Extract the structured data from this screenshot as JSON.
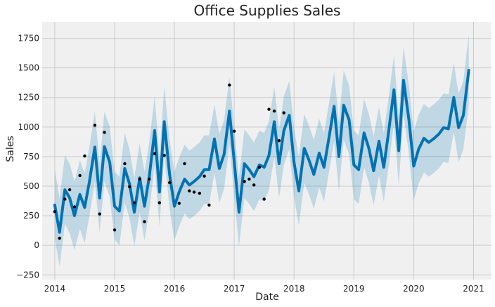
{
  "chart_data": {
    "type": "line",
    "title": "Office Supplies Sales",
    "xlabel": "Date",
    "ylabel": "Sales",
    "xlim": [
      2013.79,
      2021.3
    ],
    "ylim": [
      -290,
      1890
    ],
    "x_ticks": [
      2014,
      2015,
      2016,
      2017,
      2018,
      2019,
      2020,
      2021
    ],
    "x_tick_labels": [
      "2014",
      "2015",
      "2016",
      "2017",
      "2018",
      "2019",
      "2020",
      "2021"
    ],
    "y_ticks": [
      -250,
      0,
      250,
      500,
      750,
      1000,
      1250,
      1500,
      1750
    ],
    "y_tick_labels": [
      "−250",
      "0",
      "250",
      "500",
      "750",
      "1000",
      "1250",
      "1500",
      "1750"
    ],
    "grid": true,
    "colors": {
      "plot_background": "#f0f0f0",
      "grid": "#cbcbcb",
      "forecast_line": "#0072b2",
      "uncertainty_band": "#0072b2",
      "observed_points": "#000000"
    },
    "series": [
      {
        "name": "observed",
        "kind": "scatter",
        "x": [
          2014.0,
          2014.08,
          2014.17,
          2014.25,
          2014.33,
          2014.42,
          2014.5,
          2014.67,
          2014.75,
          2014.83,
          2015.0,
          2015.17,
          2015.25,
          2015.33,
          2015.42,
          2015.5,
          2015.58,
          2015.67,
          2015.75,
          2015.83,
          2015.92,
          2016.08,
          2016.17,
          2016.25,
          2016.33,
          2016.42,
          2016.5,
          2016.58,
          2016.92,
          2017.0,
          2017.17,
          2017.25,
          2017.33,
          2017.42,
          2017.5,
          2017.58,
          2017.67,
          2017.75,
          2017.83
        ],
        "y": [
          285,
          60,
          390,
          470,
          325,
          590,
          755,
          1015,
          265,
          955,
          130,
          690,
          495,
          360,
          560,
          200,
          560,
          775,
          360,
          760,
          530,
          355,
          690,
          460,
          450,
          440,
          585,
          340,
          1355,
          965,
          540,
          560,
          510,
          660,
          390,
          1150,
          1135,
          885,
          1120
        ]
      },
      {
        "name": "forecast",
        "kind": "line",
        "x": [
          2014.0,
          2014.08,
          2014.17,
          2014.25,
          2014.33,
          2014.42,
          2014.5,
          2014.58,
          2014.67,
          2014.75,
          2014.83,
          2014.92,
          2015.0,
          2015.08,
          2015.17,
          2015.25,
          2015.33,
          2015.42,
          2015.5,
          2015.58,
          2015.67,
          2015.75,
          2015.83,
          2015.92,
          2016.0,
          2016.08,
          2016.17,
          2016.25,
          2016.33,
          2016.42,
          2016.5,
          2016.58,
          2016.67,
          2016.75,
          2016.83,
          2016.92,
          2017.0,
          2017.08,
          2017.17,
          2017.25,
          2017.33,
          2017.42,
          2017.5,
          2017.58,
          2017.67,
          2017.75,
          2017.83,
          2017.92,
          2018.0,
          2018.08,
          2018.17,
          2018.25,
          2018.33,
          2018.42,
          2018.5,
          2018.58,
          2018.67,
          2018.75,
          2018.83,
          2018.92,
          2019.0,
          2019.08,
          2019.17,
          2019.25,
          2019.33,
          2019.42,
          2019.5,
          2019.58,
          2019.67,
          2019.75,
          2019.83,
          2019.92,
          2020.0,
          2020.08,
          2020.17,
          2020.25,
          2020.33,
          2020.42,
          2020.5,
          2020.58,
          2020.67,
          2020.75,
          2020.83,
          2020.92
        ],
        "y": [
          340,
          110,
          470,
          400,
          250,
          430,
          320,
          540,
          830,
          400,
          835,
          700,
          330,
          290,
          650,
          520,
          280,
          570,
          330,
          580,
          970,
          450,
          1045,
          600,
          330,
          450,
          560,
          510,
          540,
          580,
          640,
          640,
          900,
          650,
          770,
          1135,
          710,
          280,
          690,
          640,
          580,
          680,
          660,
          760,
          1045,
          690,
          970,
          1100,
          700,
          460,
          820,
          720,
          600,
          780,
          660,
          900,
          1175,
          750,
          1185,
          1060,
          680,
          640,
          950,
          820,
          630,
          880,
          660,
          960,
          1315,
          800,
          1395,
          1060,
          670,
          810,
          905,
          870,
          900,
          940,
          995,
          985,
          1250,
          995,
          1100,
          1480
        ]
      },
      {
        "name": "uncertainty_lower",
        "kind": "band",
        "x": [
          2014.0,
          2014.08,
          2014.17,
          2014.25,
          2014.33,
          2014.42,
          2014.5,
          2014.58,
          2014.67,
          2014.75,
          2014.83,
          2014.92,
          2015.0,
          2015.08,
          2015.17,
          2015.25,
          2015.33,
          2015.42,
          2015.5,
          2015.58,
          2015.67,
          2015.75,
          2015.83,
          2015.92,
          2016.0,
          2016.08,
          2016.17,
          2016.25,
          2016.33,
          2016.42,
          2016.5,
          2016.58,
          2016.67,
          2016.75,
          2016.83,
          2016.92,
          2017.0,
          2017.08,
          2017.17,
          2017.25,
          2017.33,
          2017.42,
          2017.5,
          2017.58,
          2017.67,
          2017.75,
          2017.83,
          2017.92,
          2018.0,
          2018.08,
          2018.17,
          2018.25,
          2018.33,
          2018.42,
          2018.5,
          2018.58,
          2018.67,
          2018.75,
          2018.83,
          2018.92,
          2019.0,
          2019.08,
          2019.17,
          2019.25,
          2019.33,
          2019.42,
          2019.5,
          2019.58,
          2019.67,
          2019.75,
          2019.83,
          2019.92,
          2020.0,
          2020.08,
          2020.17,
          2020.25,
          2020.33,
          2020.42,
          2020.5,
          2020.58,
          2020.67,
          2020.75,
          2020.83,
          2020.92
        ],
        "y": [
          60,
          -180,
          180,
          100,
          -40,
          140,
          20,
          250,
          540,
          110,
          540,
          410,
          50,
          0,
          360,
          230,
          -10,
          280,
          40,
          290,
          680,
          160,
          760,
          310,
          40,
          160,
          270,
          220,
          250,
          290,
          350,
          350,
          610,
          360,
          480,
          850,
          420,
          -10,
          400,
          350,
          290,
          390,
          370,
          470,
          750,
          400,
          680,
          810,
          410,
          170,
          530,
          430,
          310,
          490,
          370,
          610,
          880,
          460,
          890,
          770,
          390,
          350,
          660,
          530,
          340,
          590,
          370,
          670,
          1030,
          510,
          1110,
          770,
          380,
          520,
          615,
          580,
          610,
          650,
          705,
          695,
          960,
          705,
          810,
          1190
        ]
      },
      {
        "name": "uncertainty_upper",
        "kind": "band",
        "x": [
          2014.0,
          2014.08,
          2014.17,
          2014.25,
          2014.33,
          2014.42,
          2014.5,
          2014.58,
          2014.67,
          2014.75,
          2014.83,
          2014.92,
          2015.0,
          2015.08,
          2015.17,
          2015.25,
          2015.33,
          2015.42,
          2015.5,
          2015.58,
          2015.67,
          2015.75,
          2015.83,
          2015.92,
          2016.0,
          2016.08,
          2016.17,
          2016.25,
          2016.33,
          2016.42,
          2016.5,
          2016.58,
          2016.67,
          2016.75,
          2016.83,
          2016.92,
          2017.0,
          2017.08,
          2017.17,
          2017.25,
          2017.33,
          2017.42,
          2017.5,
          2017.58,
          2017.67,
          2017.75,
          2017.83,
          2017.92,
          2018.0,
          2018.08,
          2018.17,
          2018.25,
          2018.33,
          2018.42,
          2018.5,
          2018.58,
          2018.67,
          2018.75,
          2018.83,
          2018.92,
          2019.0,
          2019.08,
          2019.17,
          2019.25,
          2019.33,
          2019.42,
          2019.5,
          2019.58,
          2019.67,
          2019.75,
          2019.83,
          2019.92,
          2020.0,
          2020.08,
          2020.17,
          2020.25,
          2020.33,
          2020.42,
          2020.5,
          2020.58,
          2020.67,
          2020.75,
          2020.83,
          2020.92
        ],
        "y": [
          640,
          400,
          760,
          690,
          540,
          720,
          610,
          830,
          1130,
          690,
          1130,
          1000,
          620,
          580,
          950,
          810,
          570,
          860,
          620,
          870,
          1260,
          740,
          1340,
          890,
          620,
          740,
          850,
          800,
          830,
          870,
          930,
          930,
          1190,
          940,
          1060,
          1420,
          1000,
          570,
          980,
          930,
          870,
          970,
          950,
          1050,
          1340,
          980,
          1260,
          1390,
          990,
          750,
          1110,
          1010,
          890,
          1070,
          950,
          1190,
          1470,
          1040,
          1480,
          1350,
          970,
          930,
          1240,
          1110,
          920,
          1170,
          950,
          1250,
          1600,
          1090,
          1680,
          1350,
          960,
          1100,
          1195,
          1160,
          1190,
          1230,
          1285,
          1275,
          1540,
          1285,
          1390,
          1780
        ]
      }
    ]
  }
}
